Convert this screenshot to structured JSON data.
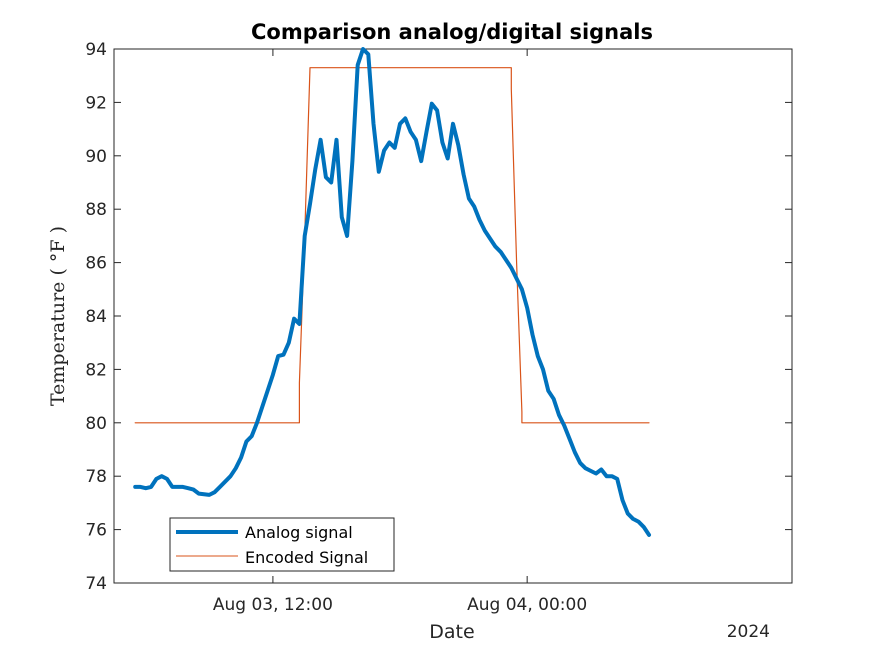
{
  "chart_data": {
    "type": "line",
    "title": "Comparison analog/digital signals",
    "xlabel": "Date",
    "ylabel": "Temperature ( °F )",
    "x_year_label": "2024",
    "ylim": [
      74,
      94
    ],
    "xlim": [
      "2024-08-03 04:30",
      "2024-08-04 12:30"
    ],
    "yticks": [
      74,
      76,
      78,
      80,
      82,
      84,
      86,
      88,
      90,
      92,
      94
    ],
    "xticks": [
      {
        "time": "2024-08-03 12:00",
        "label": "Aug 03, 12:00"
      },
      {
        "time": "2024-08-04 00:00",
        "label": "Aug 04, 00:00"
      }
    ],
    "grid": false,
    "legend_location": "bottom-left",
    "series": [
      {
        "name": "Analog signal",
        "color": "#0072BD",
        "points": [
          [
            "2024-08-03 05:30",
            77.6
          ],
          [
            "2024-08-03 05:45",
            77.6
          ],
          [
            "2024-08-03 06:00",
            77.55
          ],
          [
            "2024-08-03 06:15",
            77.6
          ],
          [
            "2024-08-03 06:30",
            77.9
          ],
          [
            "2024-08-03 06:45",
            78.0
          ],
          [
            "2024-08-03 07:00",
            77.9
          ],
          [
            "2024-08-03 07:15",
            77.6
          ],
          [
            "2024-08-03 07:45",
            77.6
          ],
          [
            "2024-08-03 08:00",
            77.55
          ],
          [
            "2024-08-03 08:15",
            77.5
          ],
          [
            "2024-08-03 08:30",
            77.35
          ],
          [
            "2024-08-03 09:00",
            77.3
          ],
          [
            "2024-08-03 09:15",
            77.4
          ],
          [
            "2024-08-03 09:30",
            77.6
          ],
          [
            "2024-08-03 10:00",
            78.0
          ],
          [
            "2024-08-03 10:15",
            78.3
          ],
          [
            "2024-08-03 10:30",
            78.7
          ],
          [
            "2024-08-03 10:45",
            79.3
          ],
          [
            "2024-08-03 11:00",
            79.5
          ],
          [
            "2024-08-03 11:15",
            80.0
          ],
          [
            "2024-08-03 11:30",
            80.6
          ],
          [
            "2024-08-03 11:45",
            81.2
          ],
          [
            "2024-08-03 12:00",
            81.8
          ],
          [
            "2024-08-03 12:15",
            82.5
          ],
          [
            "2024-08-03 12:30",
            82.55
          ],
          [
            "2024-08-03 12:45",
            83.0
          ],
          [
            "2024-08-03 13:00",
            83.9
          ],
          [
            "2024-08-03 13:15",
            83.7
          ],
          [
            "2024-08-03 13:30",
            87.0
          ],
          [
            "2024-08-03 13:45",
            88.2
          ],
          [
            "2024-08-03 14:00",
            89.5
          ],
          [
            "2024-08-03 14:15",
            90.6
          ],
          [
            "2024-08-03 14:30",
            89.2
          ],
          [
            "2024-08-03 14:45",
            89.0
          ],
          [
            "2024-08-03 15:00",
            90.6
          ],
          [
            "2024-08-03 15:15",
            87.7
          ],
          [
            "2024-08-03 15:30",
            87.0
          ],
          [
            "2024-08-03 15:45",
            89.8
          ],
          [
            "2024-08-03 16:00",
            93.4
          ],
          [
            "2024-08-03 16:15",
            94.0
          ],
          [
            "2024-08-03 16:30",
            93.8
          ],
          [
            "2024-08-03 16:45",
            91.2
          ],
          [
            "2024-08-03 17:00",
            89.4
          ],
          [
            "2024-08-03 17:15",
            90.2
          ],
          [
            "2024-08-03 17:30",
            90.5
          ],
          [
            "2024-08-03 17:45",
            90.3
          ],
          [
            "2024-08-03 18:00",
            91.2
          ],
          [
            "2024-08-03 18:15",
            91.4
          ],
          [
            "2024-08-03 18:30",
            90.9
          ],
          [
            "2024-08-03 18:45",
            90.6
          ],
          [
            "2024-08-03 19:00",
            89.8
          ],
          [
            "2024-08-03 19:15",
            90.9
          ],
          [
            "2024-08-03 19:30",
            91.95
          ],
          [
            "2024-08-03 19:45",
            91.7
          ],
          [
            "2024-08-03 20:00",
            90.5
          ],
          [
            "2024-08-03 20:15",
            89.9
          ],
          [
            "2024-08-03 20:30",
            91.2
          ],
          [
            "2024-08-03 20:45",
            90.4
          ],
          [
            "2024-08-03 21:00",
            89.3
          ],
          [
            "2024-08-03 21:15",
            88.4
          ],
          [
            "2024-08-03 21:30",
            88.1
          ],
          [
            "2024-08-03 21:45",
            87.6
          ],
          [
            "2024-08-03 22:00",
            87.2
          ],
          [
            "2024-08-03 22:15",
            86.9
          ],
          [
            "2024-08-03 22:30",
            86.6
          ],
          [
            "2024-08-03 22:45",
            86.4
          ],
          [
            "2024-08-03 23:00",
            86.1
          ],
          [
            "2024-08-03 23:15",
            85.8
          ],
          [
            "2024-08-03 23:30",
            85.4
          ],
          [
            "2024-08-03 23:45",
            85.0
          ],
          [
            "2024-08-04 00:00",
            84.3
          ],
          [
            "2024-08-04 00:15",
            83.3
          ],
          [
            "2024-08-04 00:30",
            82.5
          ],
          [
            "2024-08-04 00:45",
            82.0
          ],
          [
            "2024-08-04 01:00",
            81.2
          ],
          [
            "2024-08-04 01:15",
            80.9
          ],
          [
            "2024-08-04 01:30",
            80.3
          ],
          [
            "2024-08-04 01:45",
            79.9
          ],
          [
            "2024-08-04 02:00",
            79.4
          ],
          [
            "2024-08-04 02:15",
            78.9
          ],
          [
            "2024-08-04 02:30",
            78.5
          ],
          [
            "2024-08-04 02:45",
            78.3
          ],
          [
            "2024-08-04 03:00",
            78.2
          ],
          [
            "2024-08-04 03:15",
            78.1
          ],
          [
            "2024-08-04 03:30",
            78.25
          ],
          [
            "2024-08-04 03:45",
            78.0
          ],
          [
            "2024-08-04 04:00",
            78.0
          ],
          [
            "2024-08-04 04:15",
            77.9
          ],
          [
            "2024-08-04 04:30",
            77.1
          ],
          [
            "2024-08-04 04:45",
            76.6
          ],
          [
            "2024-08-04 05:00",
            76.4
          ],
          [
            "2024-08-04 05:15",
            76.3
          ],
          [
            "2024-08-04 05:30",
            76.1
          ],
          [
            "2024-08-04 05:45",
            75.8
          ]
        ]
      },
      {
        "name": "Encoded Signal",
        "color": "#D95319",
        "points": [
          [
            "2024-08-03 05:30",
            80.0
          ],
          [
            "2024-08-03 13:15",
            80.0
          ],
          [
            "2024-08-03 13:15",
            81.5
          ],
          [
            "2024-08-03 13:30",
            87.0
          ],
          [
            "2024-08-03 13:45",
            93.3
          ],
          [
            "2024-08-03 23:15",
            93.3
          ],
          [
            "2024-08-03 23:15",
            92.5
          ],
          [
            "2024-08-03 23:30",
            86.0
          ],
          [
            "2024-08-03 23:45",
            80.4
          ],
          [
            "2024-08-03 23:45",
            80.0
          ],
          [
            "2024-08-04 05:45",
            80.0
          ]
        ]
      }
    ]
  }
}
